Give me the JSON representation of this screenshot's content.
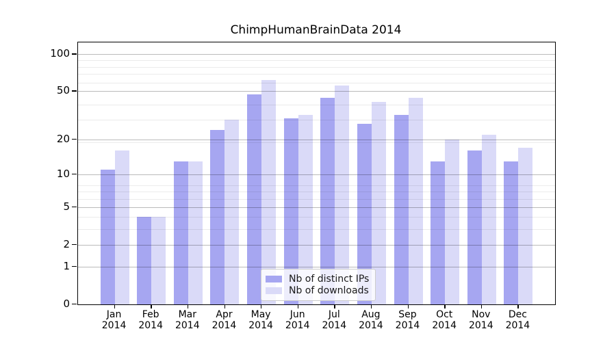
{
  "chart_data": {
    "type": "bar",
    "title": "ChimpHumanBrainData 2014",
    "categories": [
      "Jan",
      "Feb",
      "Mar",
      "Apr",
      "May",
      "Jun",
      "Jul",
      "Aug",
      "Sep",
      "Oct",
      "Nov",
      "Dec"
    ],
    "category_year": "2014",
    "series": [
      {
        "name": "Nb of distinct IPs",
        "color": "#a6a6f1",
        "values": [
          11,
          4,
          13,
          24,
          47,
          30,
          44,
          27,
          32,
          13,
          16,
          13
        ]
      },
      {
        "name": "Nb of downloads",
        "color": "#dadaf8",
        "values": [
          16,
          4,
          13,
          29,
          62,
          32,
          56,
          41,
          44,
          20,
          22,
          17
        ]
      }
    ],
    "y_axis": {
      "scale": "log1p",
      "tick_values": [
        0,
        1,
        2,
        5,
        10,
        20,
        50,
        100
      ],
      "tick_labels": [
        "0",
        "1",
        "2",
        "5",
        "10",
        "20",
        "50",
        "100"
      ],
      "minor_gridline_values": [
        3,
        4,
        6,
        7,
        8,
        19,
        29,
        39,
        59,
        69,
        79,
        89
      ],
      "ylim": [
        0,
        123
      ]
    },
    "x_axis": {
      "label_line2": "2014"
    },
    "legend": {
      "position": "lower center",
      "entries": [
        "Nb of distinct IPs",
        "Nb of downloads"
      ]
    },
    "grid": true,
    "colors": {
      "bar_dark": "#a6a6f1",
      "bar_light": "#dadaf8",
      "major_grid": "rgba(0,0,0,0.27)",
      "minor_grid": "rgba(0,0,0,0.08)",
      "spine": "#000000",
      "background": "#ffffff"
    }
  }
}
